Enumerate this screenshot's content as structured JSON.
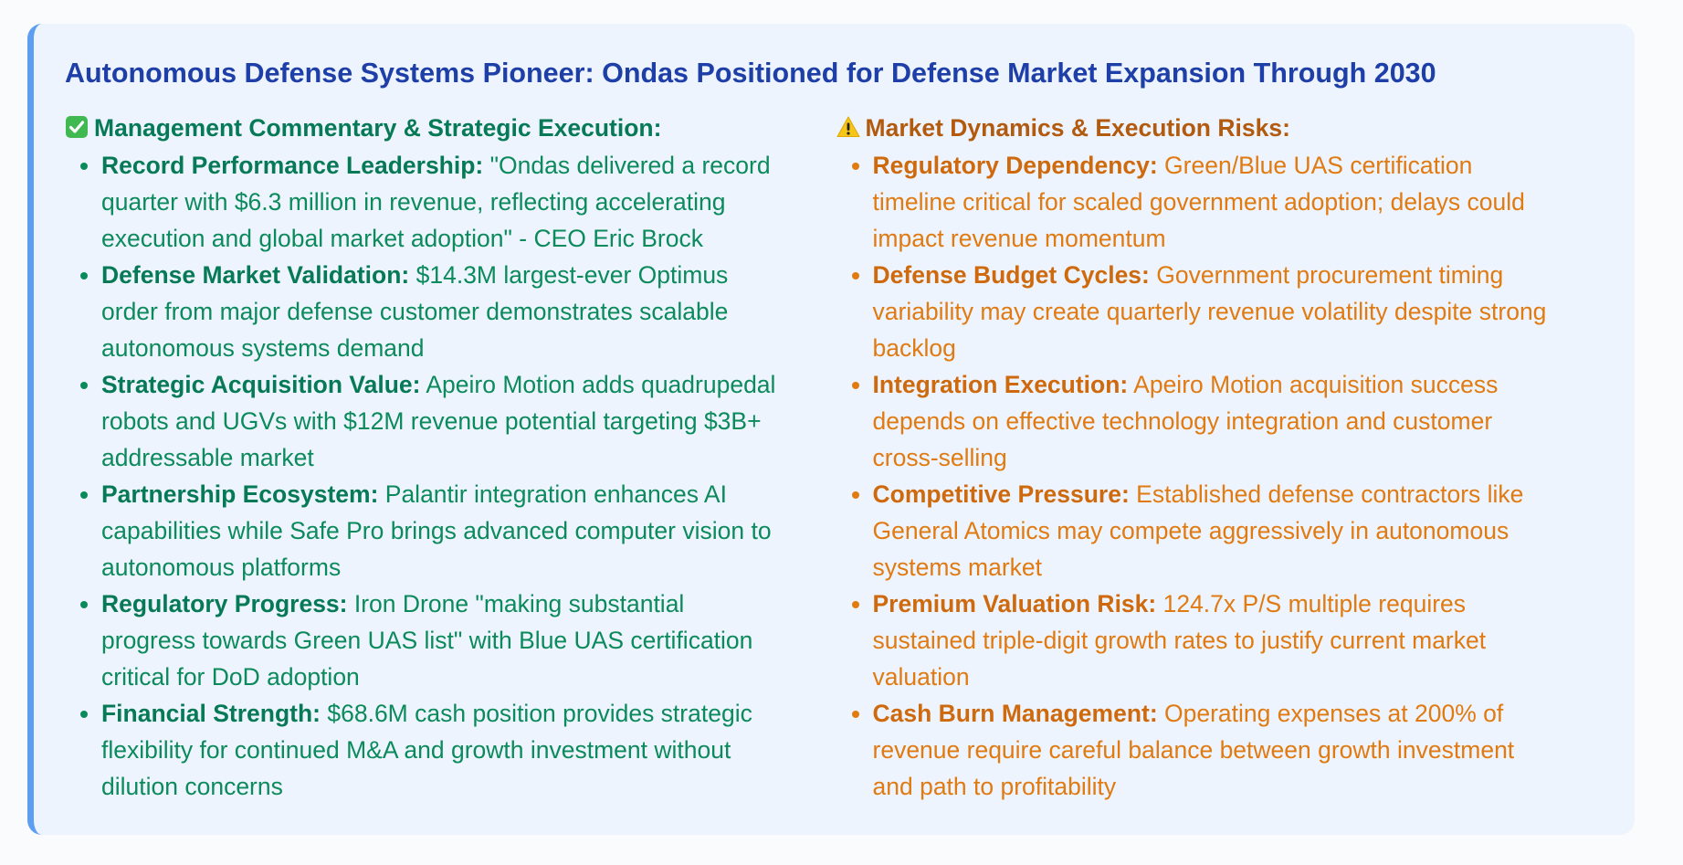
{
  "title": "Autonomous Defense Systems Pioneer: Ondas Positioned for Defense Market Expansion Through 2030",
  "colors": {
    "title": "#1e3fa8",
    "accent_border": "#5e9ef1",
    "card_bg": "#eef4fd",
    "positive": "#0b8a5c",
    "negative": "#e07a11"
  },
  "left": {
    "icon": "check-mark-icon",
    "heading": "Management Commentary & Strategic Execution:",
    "items": [
      {
        "label": "Record Performance Leadership:",
        "lines": [
          " \"Ondas delivered a record",
          "quarter with $6.3 million in revenue, reflecting accelerating",
          "execution and global market adoption\" - CEO Eric Brock"
        ]
      },
      {
        "label": "Defense Market Validation:",
        "lines": [
          " $14.3M largest-ever Optimus",
          "order from major defense customer demonstrates scalable",
          "autonomous systems demand"
        ]
      },
      {
        "label": "Strategic Acquisition Value:",
        "lines": [
          " Apeiro Motion adds quadrupedal",
          "robots and UGVs with $12M revenue potential targeting $3B+",
          "addressable market"
        ]
      },
      {
        "label": "Partnership Ecosystem:",
        "lines": [
          " Palantir integration enhances AI",
          "capabilities while Safe Pro brings advanced computer vision to",
          "autonomous platforms"
        ]
      },
      {
        "label": "Regulatory Progress:",
        "lines": [
          " Iron Drone \"making substantial",
          "progress towards Green UAS list\" with Blue UAS certification",
          "critical for DoD adoption"
        ]
      },
      {
        "label": "Financial Strength:",
        "lines": [
          " $68.6M cash position provides strategic",
          "flexibility for continued M&A and growth investment without",
          "dilution concerns"
        ]
      }
    ]
  },
  "right": {
    "icon": "warning-icon",
    "heading": "Market Dynamics & Execution Risks:",
    "items": [
      {
        "label": "Regulatory Dependency:",
        "lines": [
          " Green/Blue UAS certification",
          "timeline critical for scaled government adoption; delays could",
          "impact revenue momentum"
        ]
      },
      {
        "label": "Defense Budget Cycles:",
        "lines": [
          " Government procurement timing",
          "variability may create quarterly revenue volatility despite strong",
          "backlog"
        ]
      },
      {
        "label": "Integration Execution:",
        "lines": [
          " Apeiro Motion acquisition success",
          "depends on effective technology integration and customer",
          "cross-selling"
        ]
      },
      {
        "label": "Competitive Pressure:",
        "lines": [
          " Established defense contractors like",
          "General Atomics may compete aggressively in autonomous",
          "systems market"
        ]
      },
      {
        "label": "Premium Valuation Risk:",
        "lines": [
          " 124.7x P/S multiple requires",
          "sustained triple-digit growth rates to justify current market",
          "valuation"
        ]
      },
      {
        "label": "Cash Burn Management:",
        "lines": [
          " Operating expenses at 200% of",
          "revenue require careful balance between growth investment",
          "and path to profitability"
        ]
      }
    ]
  }
}
